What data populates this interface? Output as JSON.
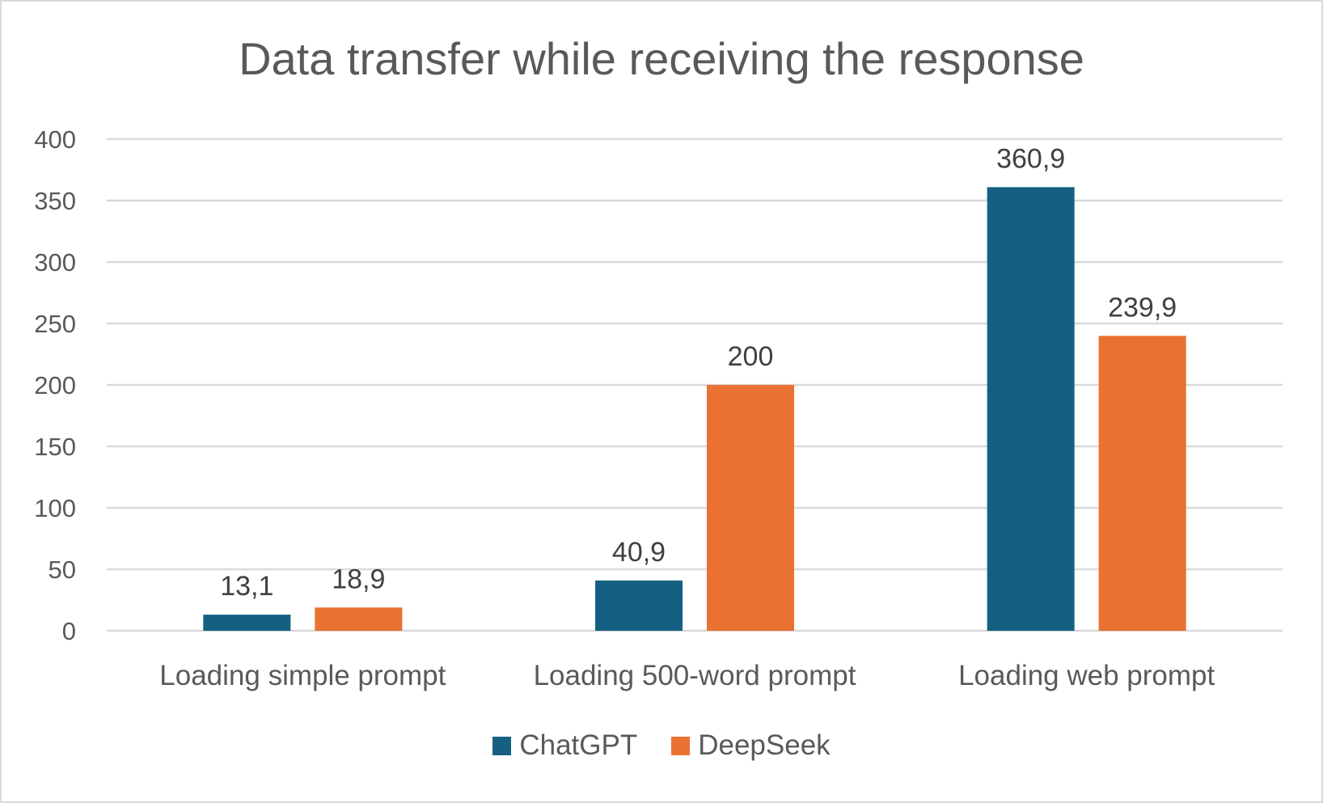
{
  "chart_data": {
    "type": "bar",
    "title": "Data transfer while receiving the response",
    "categories": [
      "Loading simple prompt",
      "Loading 500-word prompt",
      "Loading web prompt"
    ],
    "series": [
      {
        "name": "ChatGPT",
        "color": "#156082",
        "values": [
          13.1,
          40.9,
          360.9
        ],
        "labels": [
          "13,1",
          "40,9",
          "360,9"
        ]
      },
      {
        "name": "DeepSeek",
        "color": "#E97132",
        "values": [
          18.9,
          200,
          239.9
        ],
        "labels": [
          "18,9",
          "200",
          "239,9"
        ]
      }
    ],
    "yticks": [
      "0",
      "50",
      "100",
      "150",
      "200",
      "250",
      "300",
      "350",
      "400"
    ],
    "ylim": [
      0,
      400
    ],
    "grid": true,
    "legend": "bottom"
  }
}
